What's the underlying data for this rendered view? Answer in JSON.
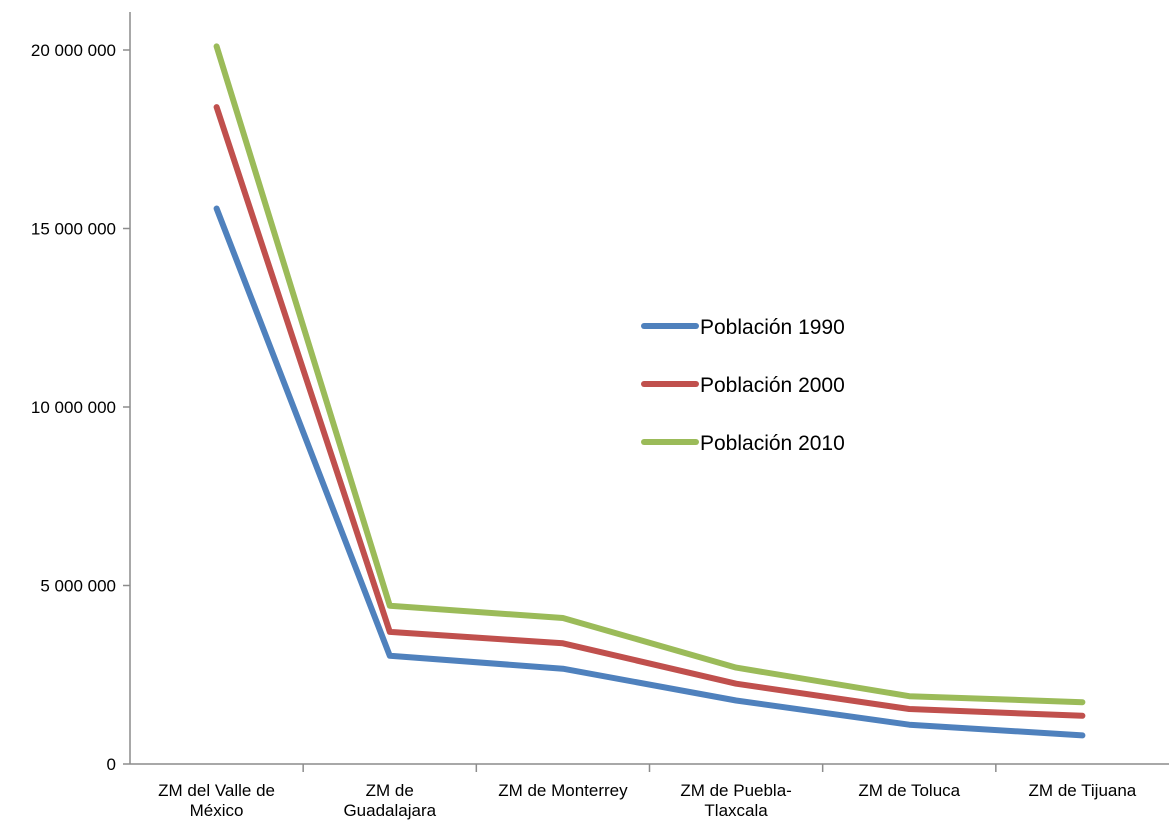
{
  "chart_data": {
    "type": "line",
    "title": "",
    "xlabel": "",
    "ylabel": "",
    "categories": [
      [
        "ZM del Valle de",
        "México"
      ],
      [
        "ZM de",
        "Guadalajara"
      ],
      [
        "ZM de Monterrey"
      ],
      [
        "ZM de Puebla-",
        "Tlaxcala"
      ],
      [
        "ZM de Toluca"
      ],
      [
        "ZM de Tijuana"
      ]
    ],
    "ylim": [
      0,
      21000000
    ],
    "yticks": [
      {
        "value": 0,
        "label": "0"
      },
      {
        "value": 5000000,
        "label": "5 000 000"
      },
      {
        "value": 10000000,
        "label": "10 000 000"
      },
      {
        "value": 15000000,
        "label": "15 000 000"
      },
      {
        "value": 20000000,
        "label": "20 000 000"
      }
    ],
    "grid": false,
    "legend_position": "center-right",
    "series": [
      {
        "name": "Población 1990",
        "color": "#4F81BD",
        "values": [
          15560000,
          3030000,
          2670000,
          1780000,
          1100000,
          800000
        ]
      },
      {
        "name": "Población 2000",
        "color": "#C0504D",
        "values": [
          18400000,
          3700000,
          3380000,
          2250000,
          1540000,
          1350000
        ]
      },
      {
        "name": "Población 2010",
        "color": "#9BBB59",
        "values": [
          20100000,
          4430000,
          4090000,
          2700000,
          1900000,
          1730000
        ]
      }
    ]
  }
}
